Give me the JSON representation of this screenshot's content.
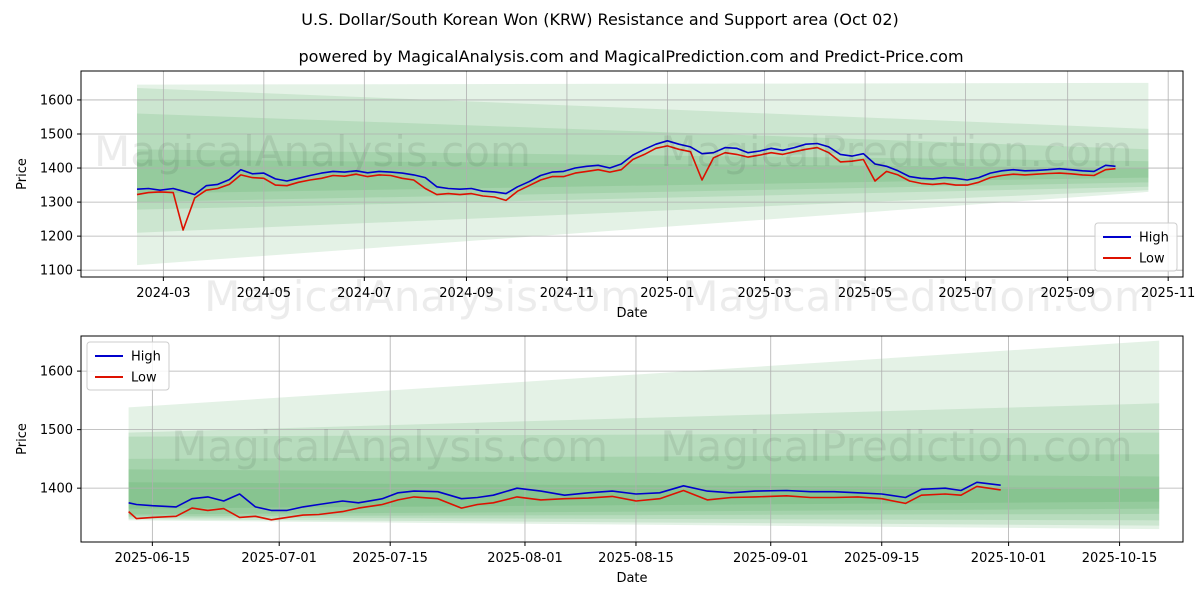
{
  "title": "U.S. Dollar/South Korean Won (KRW) Resistance and Support area (Oct 02)",
  "subtitle": "powered by MagicalAnalysis.com and MagicalPrediction.com and Predict-Price.com",
  "watermarks": [
    "MagicalAnalysis.com",
    "MagicalPrediction.com"
  ],
  "colors": {
    "high": "#0000cc",
    "low": "#dd1100",
    "band": "#2e9e3a"
  },
  "chart_data": [
    {
      "type": "line",
      "name": "full-range",
      "xlabel": "Date",
      "ylabel": "Price",
      "x_range": [
        "2024-01-11",
        "2025-11-10"
      ],
      "ylim": [
        1080,
        1685
      ],
      "grid": true,
      "legend_position": "bottom-right",
      "xticks": [
        "2024-03",
        "2024-05",
        "2024-07",
        "2024-09",
        "2024-11",
        "2025-01",
        "2025-03",
        "2025-05",
        "2025-07",
        "2025-09",
        "2025-11"
      ],
      "yticks": [
        1100,
        1200,
        1300,
        1400,
        1500,
        1600
      ],
      "band_x": [
        "2024-02-14",
        "2025-10-20"
      ],
      "bands": [
        {
          "start": [
            1115,
            1645
          ],
          "end": [
            1330,
            1650
          ]
        },
        {
          "start": [
            1210,
            1635
          ],
          "end": [
            1335,
            1515
          ]
        },
        {
          "start": [
            1278,
            1560
          ],
          "end": [
            1345,
            1455
          ]
        },
        {
          "start": [
            1300,
            1455
          ],
          "end": [
            1358,
            1420
          ]
        },
        {
          "start": [
            1325,
            1425
          ],
          "end": [
            1372,
            1400
          ]
        }
      ],
      "series": [
        {
          "name": "High",
          "x": [
            "2024-02-14",
            "2024-02-21",
            "2024-02-28",
            "2024-03-07",
            "2024-03-13",
            "2024-03-20",
            "2024-03-27",
            "2024-04-03",
            "2024-04-10",
            "2024-04-17",
            "2024-04-24",
            "2024-05-01",
            "2024-05-08",
            "2024-05-15",
            "2024-05-22",
            "2024-05-29",
            "2024-06-05",
            "2024-06-12",
            "2024-06-19",
            "2024-06-26",
            "2024-07-03",
            "2024-07-10",
            "2024-07-17",
            "2024-07-24",
            "2024-07-31",
            "2024-08-07",
            "2024-08-14",
            "2024-08-21",
            "2024-08-28",
            "2024-09-04",
            "2024-09-11",
            "2024-09-18",
            "2024-09-25",
            "2024-10-02",
            "2024-10-09",
            "2024-10-16",
            "2024-10-23",
            "2024-10-30",
            "2024-11-06",
            "2024-11-13",
            "2024-11-20",
            "2024-11-27",
            "2024-12-04",
            "2024-12-11",
            "2024-12-18",
            "2024-12-25",
            "2025-01-01",
            "2025-01-08",
            "2025-01-15",
            "2025-01-22",
            "2025-01-29",
            "2025-02-05",
            "2025-02-12",
            "2025-02-19",
            "2025-02-26",
            "2025-03-05",
            "2025-03-12",
            "2025-03-19",
            "2025-03-26",
            "2025-04-02",
            "2025-04-09",
            "2025-04-16",
            "2025-04-23",
            "2025-04-30",
            "2025-05-07",
            "2025-05-14",
            "2025-05-21",
            "2025-05-28",
            "2025-06-04",
            "2025-06-11",
            "2025-06-18",
            "2025-06-25",
            "2025-07-02",
            "2025-07-09",
            "2025-07-16",
            "2025-07-23",
            "2025-07-30",
            "2025-08-06",
            "2025-08-13",
            "2025-08-20",
            "2025-08-27",
            "2025-09-03",
            "2025-09-10",
            "2025-09-17",
            "2025-09-24",
            "2025-09-30"
          ],
          "values": [
            1338,
            1340,
            1335,
            1340,
            1332,
            1322,
            1348,
            1352,
            1366,
            1395,
            1383,
            1385,
            1368,
            1362,
            1370,
            1378,
            1385,
            1390,
            1388,
            1392,
            1386,
            1390,
            1388,
            1385,
            1380,
            1372,
            1345,
            1340,
            1338,
            1340,
            1332,
            1330,
            1325,
            1345,
            1360,
            1378,
            1388,
            1390,
            1400,
            1405,
            1408,
            1400,
            1412,
            1438,
            1455,
            1470,
            1480,
            1470,
            1462,
            1442,
            1445,
            1460,
            1458,
            1445,
            1450,
            1458,
            1452,
            1460,
            1470,
            1472,
            1462,
            1440,
            1435,
            1442,
            1412,
            1405,
            1392,
            1375,
            1370,
            1368,
            1372,
            1370,
            1365,
            1372,
            1385,
            1392,
            1395,
            1392,
            1393,
            1395,
            1398,
            1395,
            1392,
            1390,
            1408,
            1405
          ]
        },
        {
          "name": "Low",
          "x": [
            "2024-02-14",
            "2024-02-21",
            "2024-02-28",
            "2024-03-07",
            "2024-03-13",
            "2024-03-20",
            "2024-03-27",
            "2024-04-03",
            "2024-04-10",
            "2024-04-17",
            "2024-04-24",
            "2024-05-01",
            "2024-05-08",
            "2024-05-15",
            "2024-05-22",
            "2024-05-29",
            "2024-06-05",
            "2024-06-12",
            "2024-06-19",
            "2024-06-26",
            "2024-07-03",
            "2024-07-10",
            "2024-07-17",
            "2024-07-24",
            "2024-07-31",
            "2024-08-07",
            "2024-08-14",
            "2024-08-21",
            "2024-08-28",
            "2024-09-04",
            "2024-09-11",
            "2024-09-18",
            "2024-09-25",
            "2024-10-02",
            "2024-10-09",
            "2024-10-16",
            "2024-10-23",
            "2024-10-30",
            "2024-11-06",
            "2024-11-13",
            "2024-11-20",
            "2024-11-27",
            "2024-12-04",
            "2024-12-11",
            "2024-12-18",
            "2024-12-25",
            "2025-01-01",
            "2025-01-08",
            "2025-01-15",
            "2025-01-22",
            "2025-01-29",
            "2025-02-05",
            "2025-02-12",
            "2025-02-19",
            "2025-02-26",
            "2025-03-05",
            "2025-03-12",
            "2025-03-19",
            "2025-03-26",
            "2025-04-02",
            "2025-04-09",
            "2025-04-16",
            "2025-04-23",
            "2025-04-30",
            "2025-05-07",
            "2025-05-14",
            "2025-05-21",
            "2025-05-28",
            "2025-06-04",
            "2025-06-11",
            "2025-06-18",
            "2025-06-25",
            "2025-07-02",
            "2025-07-09",
            "2025-07-16",
            "2025-07-23",
            "2025-07-30",
            "2025-08-06",
            "2025-08-13",
            "2025-08-20",
            "2025-08-27",
            "2025-09-03",
            "2025-09-10",
            "2025-09-17",
            "2025-09-24",
            "2025-09-30"
          ],
          "values": [
            1322,
            1328,
            1330,
            1328,
            1218,
            1312,
            1335,
            1340,
            1352,
            1380,
            1372,
            1370,
            1350,
            1348,
            1358,
            1365,
            1370,
            1378,
            1376,
            1382,
            1375,
            1380,
            1378,
            1370,
            1365,
            1340,
            1322,
            1325,
            1322,
            1325,
            1318,
            1315,
            1305,
            1332,
            1348,
            1365,
            1375,
            1375,
            1385,
            1390,
            1395,
            1388,
            1395,
            1425,
            1440,
            1458,
            1465,
            1455,
            1448,
            1365,
            1430,
            1445,
            1440,
            1432,
            1438,
            1445,
            1440,
            1448,
            1455,
            1460,
            1445,
            1418,
            1420,
            1425,
            1362,
            1390,
            1380,
            1362,
            1355,
            1352,
            1355,
            1350,
            1350,
            1358,
            1372,
            1378,
            1382,
            1380,
            1382,
            1384,
            1385,
            1383,
            1380,
            1378,
            1395,
            1398
          ]
        }
      ]
    },
    {
      "type": "line",
      "name": "zoom",
      "xlabel": "Date",
      "ylabel": "Price",
      "x_range": [
        "2025-06-06",
        "2025-10-23"
      ],
      "ylim": [
        1308,
        1660
      ],
      "grid": true,
      "legend_position": "top-left",
      "xticks": [
        "2025-06-15",
        "2025-07-01",
        "2025-07-15",
        "2025-08-01",
        "2025-08-15",
        "2025-09-01",
        "2025-09-15",
        "2025-10-01",
        "2025-10-15"
      ],
      "yticks": [
        1400,
        1500,
        1600
      ],
      "band_x": [
        "2025-06-12",
        "2025-10-20"
      ],
      "bands": [
        {
          "start": [
            1345,
            1538
          ],
          "end": [
            1330,
            1652
          ]
        },
        {
          "start": [
            1347,
            1495
          ],
          "end": [
            1336,
            1545
          ]
        },
        {
          "start": [
            1350,
            1488
          ],
          "end": [
            1345,
            1495
          ]
        },
        {
          "start": [
            1352,
            1450
          ],
          "end": [
            1356,
            1458
          ]
        },
        {
          "start": [
            1355,
            1432
          ],
          "end": [
            1365,
            1420
          ]
        },
        {
          "start": [
            1365,
            1410
          ],
          "end": [
            1377,
            1400
          ]
        }
      ],
      "series": [
        {
          "name": "High",
          "x": [
            "2025-06-12",
            "2025-06-13",
            "2025-06-15",
            "2025-06-18",
            "2025-06-20",
            "2025-06-22",
            "2025-06-24",
            "2025-06-26",
            "2025-06-28",
            "2025-06-30",
            "2025-07-02",
            "2025-07-04",
            "2025-07-06",
            "2025-07-09",
            "2025-07-11",
            "2025-07-14",
            "2025-07-16",
            "2025-07-18",
            "2025-07-21",
            "2025-07-24",
            "2025-07-26",
            "2025-07-28",
            "2025-07-31",
            "2025-08-03",
            "2025-08-06",
            "2025-08-09",
            "2025-08-12",
            "2025-08-15",
            "2025-08-18",
            "2025-08-21",
            "2025-08-24",
            "2025-08-27",
            "2025-08-30",
            "2025-09-03",
            "2025-09-06",
            "2025-09-09",
            "2025-09-12",
            "2025-09-15",
            "2025-09-18",
            "2025-09-20",
            "2025-09-23",
            "2025-09-25",
            "2025-09-27",
            "2025-09-30"
          ],
          "values": [
            1375,
            1372,
            1370,
            1368,
            1382,
            1385,
            1378,
            1390,
            1368,
            1362,
            1362,
            1368,
            1372,
            1378,
            1375,
            1382,
            1392,
            1395,
            1394,
            1382,
            1384,
            1388,
            1400,
            1395,
            1388,
            1392,
            1395,
            1390,
            1392,
            1404,
            1395,
            1392,
            1395,
            1396,
            1394,
            1394,
            1392,
            1390,
            1384,
            1398,
            1400,
            1396,
            1410,
            1405
          ]
        },
        {
          "name": "Low",
          "x": [
            "2025-06-12",
            "2025-06-13",
            "2025-06-15",
            "2025-06-18",
            "2025-06-20",
            "2025-06-22",
            "2025-06-24",
            "2025-06-26",
            "2025-06-28",
            "2025-06-30",
            "2025-07-02",
            "2025-07-04",
            "2025-07-06",
            "2025-07-09",
            "2025-07-11",
            "2025-07-14",
            "2025-07-16",
            "2025-07-18",
            "2025-07-21",
            "2025-07-24",
            "2025-07-26",
            "2025-07-28",
            "2025-07-31",
            "2025-08-03",
            "2025-08-06",
            "2025-08-09",
            "2025-08-12",
            "2025-08-15",
            "2025-08-18",
            "2025-08-21",
            "2025-08-24",
            "2025-08-27",
            "2025-08-30",
            "2025-09-03",
            "2025-09-06",
            "2025-09-09",
            "2025-09-12",
            "2025-09-15",
            "2025-09-18",
            "2025-09-20",
            "2025-09-23",
            "2025-09-25",
            "2025-09-27",
            "2025-09-30"
          ],
          "values": [
            1360,
            1348,
            1350,
            1352,
            1366,
            1362,
            1365,
            1350,
            1352,
            1346,
            1350,
            1354,
            1355,
            1360,
            1366,
            1372,
            1380,
            1385,
            1382,
            1366,
            1372,
            1375,
            1385,
            1380,
            1382,
            1383,
            1386,
            1378,
            1382,
            1396,
            1380,
            1384,
            1385,
            1387,
            1384,
            1384,
            1385,
            1382,
            1374,
            1388,
            1390,
            1388,
            1403,
            1397
          ]
        }
      ]
    }
  ]
}
